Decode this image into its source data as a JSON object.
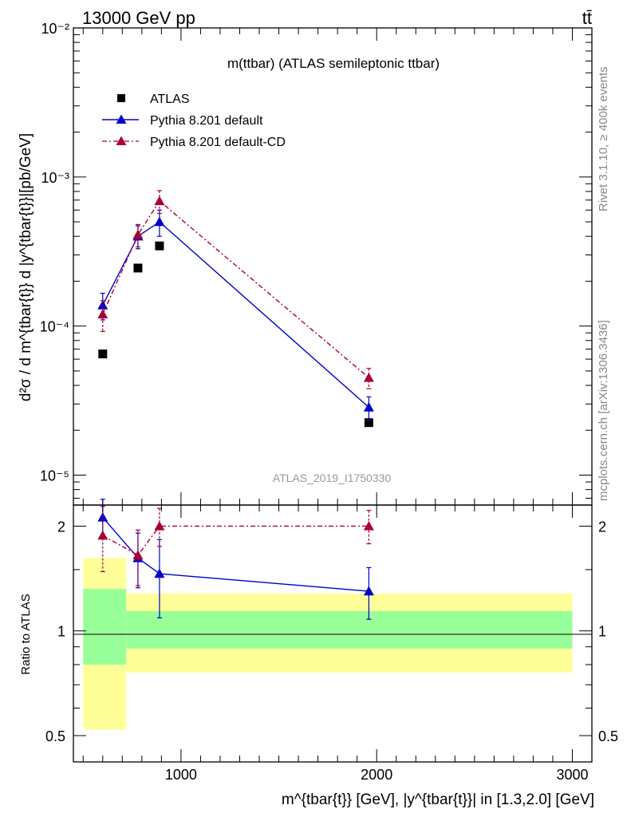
{
  "header": {
    "left": "13000 GeV pp",
    "right": "tt̄"
  },
  "side_labels": {
    "rivet": "Rivet 3.1.10, ≥ 400k events",
    "mcplots": "mcplots.cern.ch [arXiv:1306.3436]"
  },
  "analysis_id": "ATLAS_2019_I1750330",
  "chart_data": {
    "type": "line",
    "title": "m(ttbar) (ATLAS semileptonic ttbar)",
    "ylabel": "d²σ / d m^{tbar{t}} d |y^{tbar{t}}|[pb/GeV]",
    "xlabel": "m^{tbar{t}} [GeV], |y^{tbar{t}}| in [1.3,2.0] [GeV]",
    "ylabel_ratio": "Ratio to ATLAS",
    "xlim": [
      450,
      3100
    ],
    "ylim": [
      6.3e-06,
      0.01
    ],
    "ylim_ratio": [
      0.42,
      2.3
    ],
    "yscale": "log",
    "x_ticks": [
      "1000",
      "2000",
      "3000"
    ],
    "y_ticks": [
      "10⁻⁵",
      "10⁻⁴",
      "10⁻³",
      "10⁻²"
    ],
    "ratio_ticks": [
      "0.5",
      "1",
      "2"
    ],
    "legend_position": "top-left",
    "series": [
      {
        "name": "ATLAS",
        "marker": "square",
        "color": "#000000",
        "x": [
          600,
          780,
          890,
          1960
        ],
        "y": [
          6.5e-05,
          0.000245,
          0.000345,
          2.25e-05
        ]
      },
      {
        "name": "Pythia 8.201 default",
        "marker": "triangle",
        "line": "solid",
        "color": "#0000cc",
        "x": [
          600,
          780,
          890,
          1960
        ],
        "y": [
          0.000138,
          0.0004,
          0.0005,
          2.85e-05
        ],
        "err": [
          2.8e-05,
          7e-05,
          0.0001,
          5e-06
        ],
        "ratio": [
          2.12,
          1.62,
          1.46,
          1.3
        ],
        "ratio_err": [
          0.27,
          0.29,
          0.37,
          0.22
        ]
      },
      {
        "name": "Pythia 8.201 default-CD",
        "marker": "triangle",
        "line": "dash-dot",
        "color": "#aa0033",
        "x": [
          600,
          780,
          890,
          1960
        ],
        "y": [
          0.00012,
          0.00041,
          0.00069,
          4.5e-05
        ],
        "err": [
          2.8e-05,
          7e-05,
          0.00012,
          7e-06
        ],
        "ratio": [
          1.88,
          1.65,
          2.0,
          2.0
        ],
        "ratio_err": [
          0.4,
          0.3,
          0.25,
          0.22
        ]
      }
    ],
    "uncertainty_bands": {
      "edges": [
        500,
        720,
        880,
        3000
      ],
      "inner": [
        [
          0.8,
          1.32
        ],
        [
          0.89,
          1.14
        ],
        [
          0.89,
          1.14
        ]
      ],
      "outer": [
        [
          0.52,
          1.62
        ],
        [
          0.76,
          1.28
        ],
        [
          0.76,
          1.28
        ]
      ],
      "inner_color": "#99ff99",
      "outer_color": "#ffff99"
    }
  }
}
